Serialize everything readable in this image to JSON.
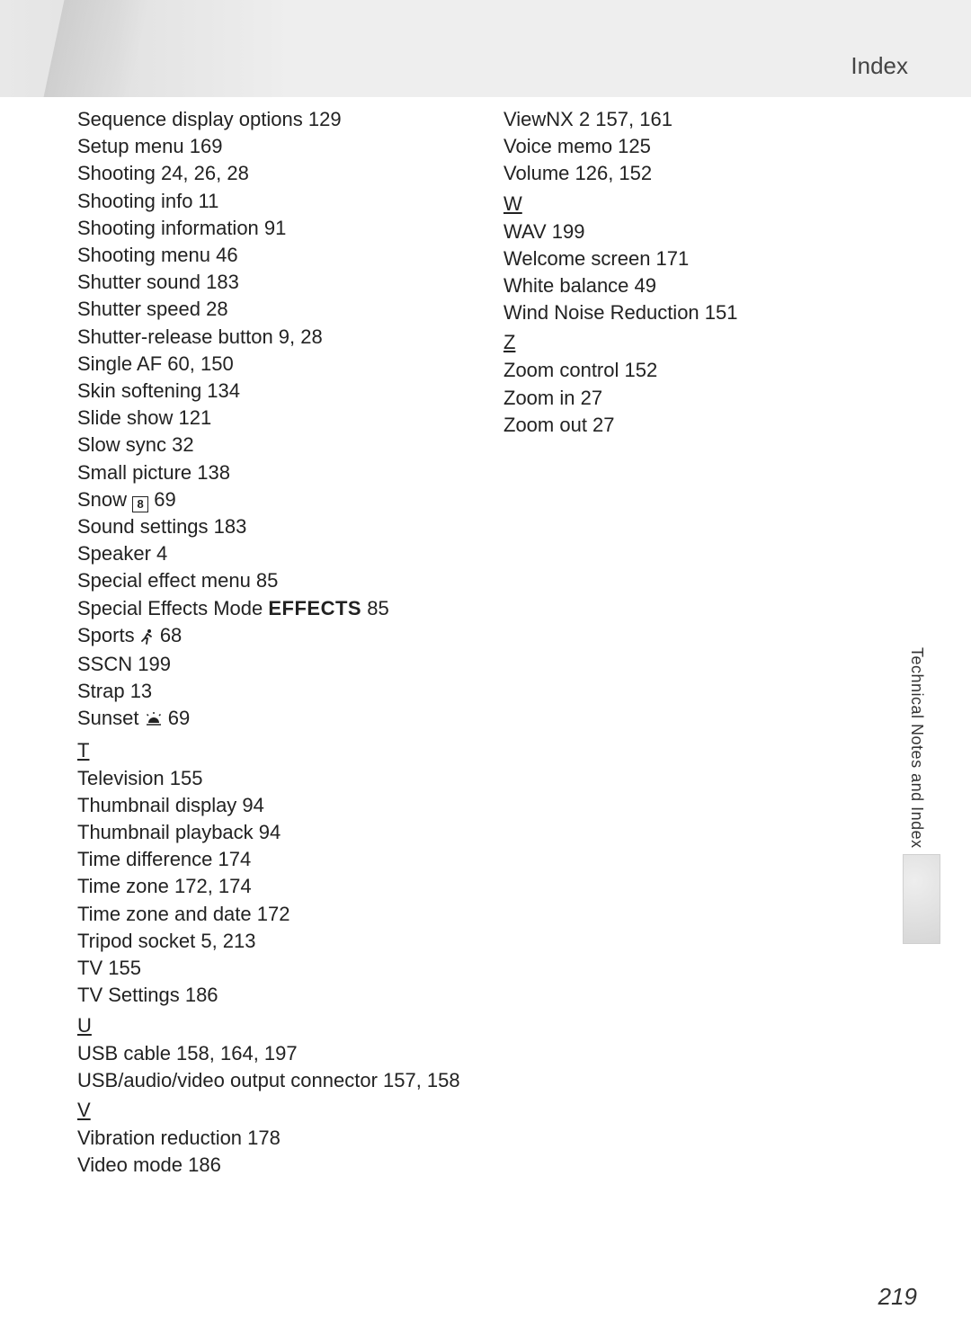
{
  "header": {
    "title": "Index"
  },
  "side_label": "Technical Notes and Index",
  "page_number": "219",
  "left_column": [
    {
      "type": "entry",
      "text": "Sequence display options 129"
    },
    {
      "type": "entry",
      "text": "Setup menu 169"
    },
    {
      "type": "entry",
      "text": "Shooting 24, 26, 28"
    },
    {
      "type": "entry",
      "text": "Shooting info 11"
    },
    {
      "type": "entry",
      "text": "Shooting information 91"
    },
    {
      "type": "entry",
      "text": "Shooting menu 46"
    },
    {
      "type": "entry",
      "text": "Shutter sound 183"
    },
    {
      "type": "entry",
      "text": "Shutter speed 28"
    },
    {
      "type": "entry",
      "text": "Shutter-release button 9, 28"
    },
    {
      "type": "entry",
      "text": "Single AF 60, 150"
    },
    {
      "type": "entry",
      "text": "Skin softening 134"
    },
    {
      "type": "entry",
      "text": "Slide show 121"
    },
    {
      "type": "entry",
      "text": "Slow sync 32"
    },
    {
      "type": "entry",
      "text": "Small picture 138"
    },
    {
      "type": "icon_entry",
      "prefix": "Snow ",
      "icon": "snow",
      "icon_char": "8",
      "suffix": " 69"
    },
    {
      "type": "entry",
      "text": "Sound settings 183"
    },
    {
      "type": "entry",
      "text": "Speaker 4"
    },
    {
      "type": "entry",
      "text": "Special effect menu 85"
    },
    {
      "type": "effects_entry",
      "prefix": "Special Effects Mode ",
      "bold": "EFFECTS",
      "suffix": " 85"
    },
    {
      "type": "icon_entry",
      "prefix": "Sports ",
      "icon": "sports",
      "icon_char": "🏃",
      "suffix": " 68"
    },
    {
      "type": "entry",
      "text": "SSCN 199"
    },
    {
      "type": "entry",
      "text": "Strap 13"
    },
    {
      "type": "icon_entry",
      "prefix": "Sunset ",
      "icon": "sunset",
      "icon_char": "🌅",
      "suffix": " 69"
    },
    {
      "type": "letter",
      "text": "T"
    },
    {
      "type": "entry",
      "text": "Television 155"
    },
    {
      "type": "entry",
      "text": "Thumbnail display 94"
    },
    {
      "type": "entry",
      "text": "Thumbnail playback 94"
    },
    {
      "type": "entry",
      "text": "Time difference 174"
    },
    {
      "type": "entry",
      "text": "Time zone 172, 174"
    },
    {
      "type": "entry",
      "text": "Time zone and date 172"
    },
    {
      "type": "entry",
      "text": "Tripod socket 5, 213"
    },
    {
      "type": "entry",
      "text": "TV 155"
    },
    {
      "type": "entry",
      "text": "TV Settings 186"
    },
    {
      "type": "letter",
      "text": "U"
    },
    {
      "type": "entry",
      "text": "USB cable 158, 164, 197"
    },
    {
      "type": "entry",
      "text": "USB/audio/video output connector 157, 158"
    },
    {
      "type": "letter",
      "text": "V"
    },
    {
      "type": "entry",
      "text": "Vibration reduction 178"
    },
    {
      "type": "entry",
      "text": "Video mode 186"
    }
  ],
  "right_column": [
    {
      "type": "entry",
      "text": "ViewNX 2 157, 161"
    },
    {
      "type": "entry",
      "text": "Voice memo 125"
    },
    {
      "type": "entry",
      "text": "Volume 126, 152"
    },
    {
      "type": "letter",
      "text": "W"
    },
    {
      "type": "entry",
      "text": "WAV 199"
    },
    {
      "type": "entry",
      "text": "Welcome screen 171"
    },
    {
      "type": "entry",
      "text": "White balance 49"
    },
    {
      "type": "entry",
      "text": "Wind Noise Reduction 151"
    },
    {
      "type": "letter",
      "text": "Z"
    },
    {
      "type": "entry",
      "text": "Zoom control 152"
    },
    {
      "type": "entry",
      "text": "Zoom in 27"
    },
    {
      "type": "entry",
      "text": "Zoom out 27"
    }
  ],
  "style": {
    "page_bg": "#ffffff",
    "header_bg_left": "#e2e2e2",
    "header_bg_right": "#eeeeee",
    "text_color": "#222222",
    "header_text_color": "#444444",
    "tab_bg": "#e0e0e0",
    "body_fontsize": 22,
    "line_height": 30.2,
    "header_fontsize": 26,
    "side_fontsize": 18,
    "page_num_fontsize": 26
  }
}
